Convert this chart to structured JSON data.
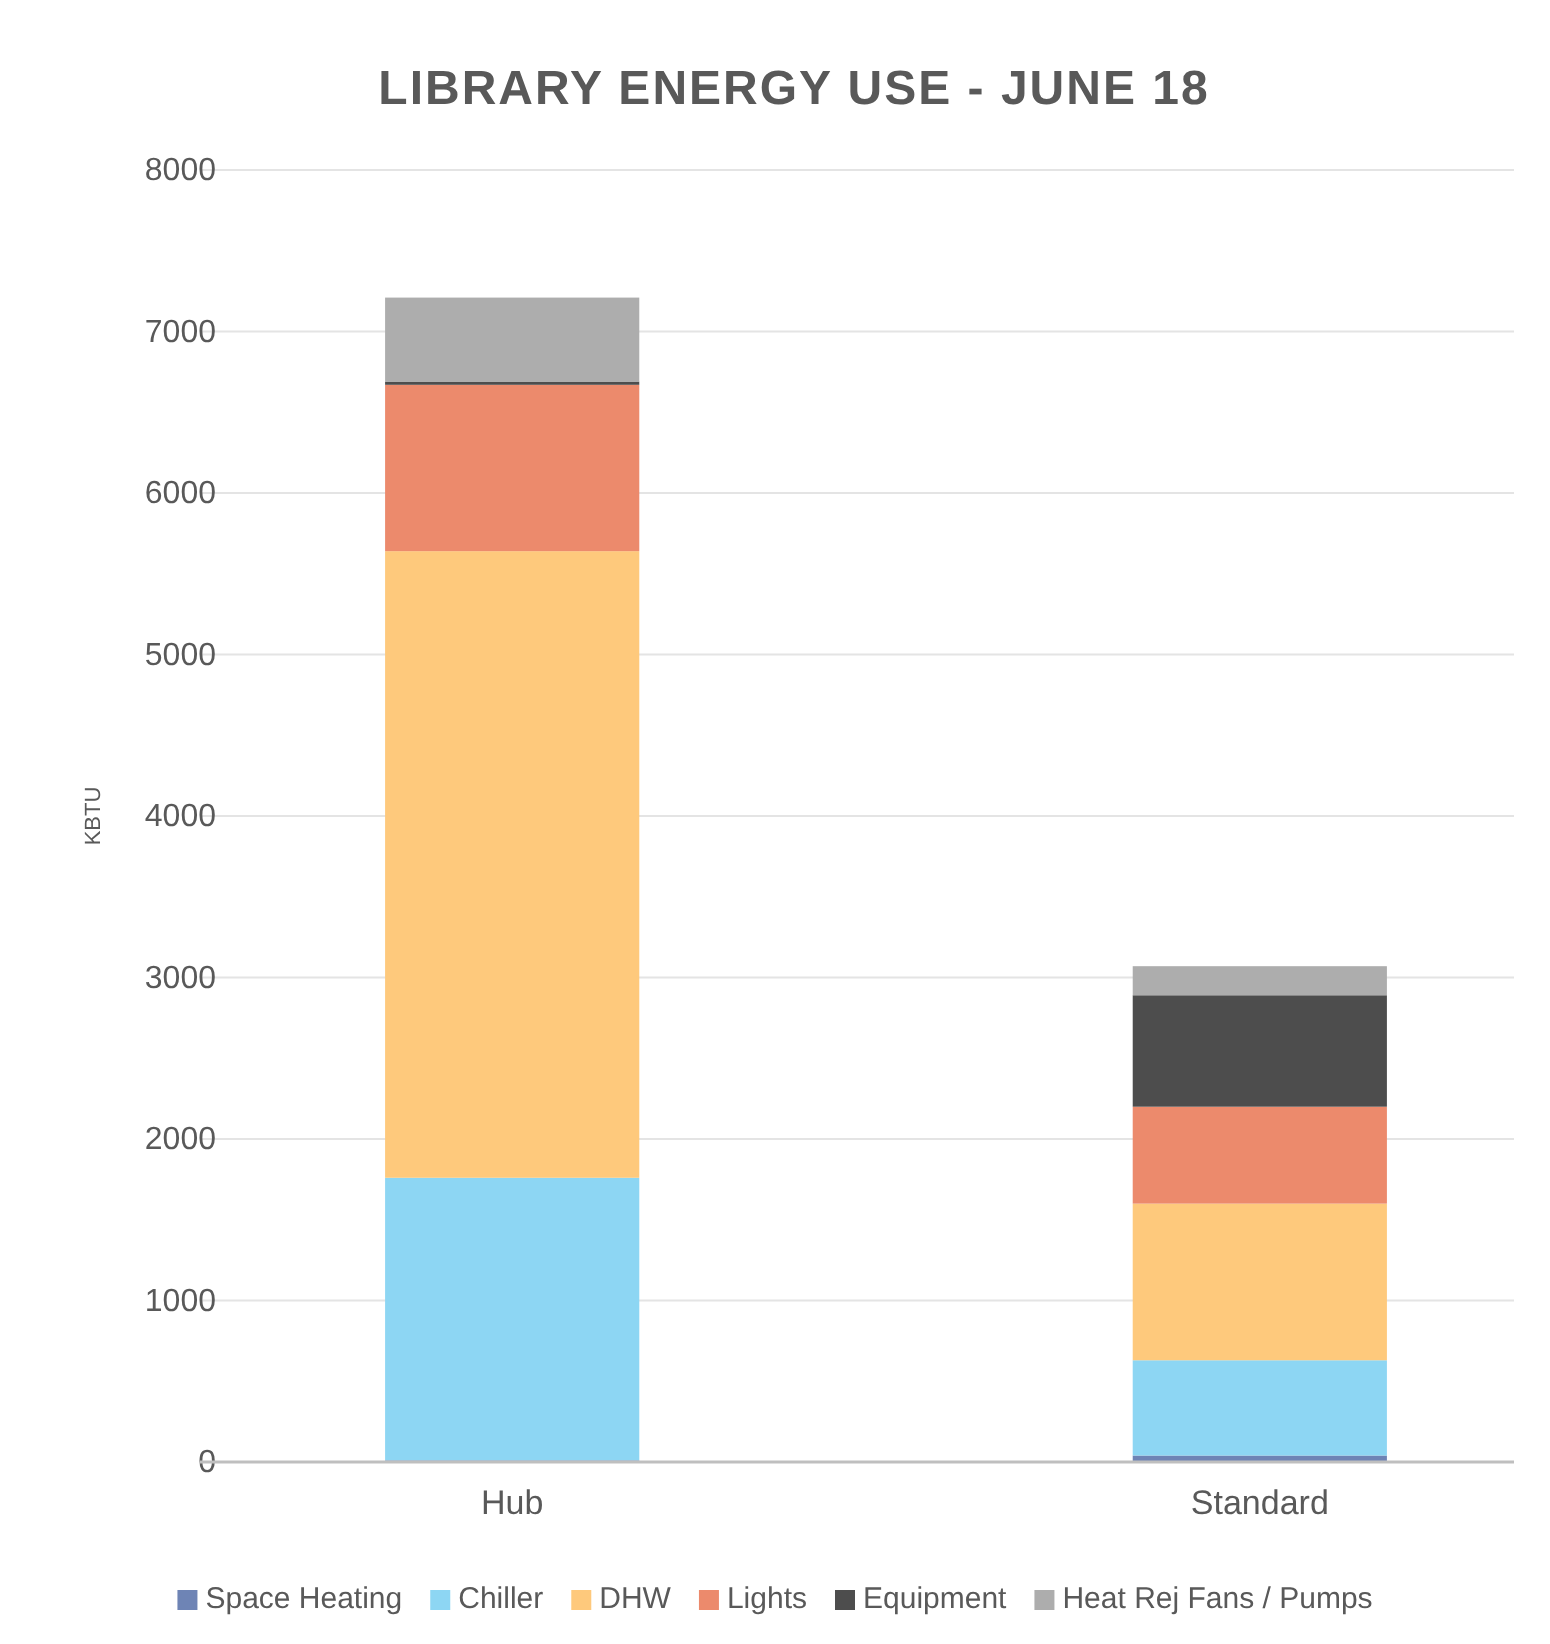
{
  "chart_data": {
    "type": "bar",
    "title": "LIBRARY ENERGY USE - JUNE 18",
    "ylabel": "KBTU",
    "categories": [
      "Hub",
      "Standard"
    ],
    "stacked": true,
    "ylim": [
      0,
      8000
    ],
    "yticks": [
      0,
      1000,
      2000,
      3000,
      4000,
      5000,
      6000,
      7000,
      8000
    ],
    "grid": "y",
    "legend": "bottom",
    "series": [
      {
        "name": "Space Heating",
        "color": "#6e84b5",
        "values": [
          10,
          40
        ]
      },
      {
        "name": "Chiller",
        "color": "#8dd6f3",
        "values": [
          1750,
          590
        ]
      },
      {
        "name": "DHW",
        "color": "#fec97c",
        "values": [
          3880,
          970
        ]
      },
      {
        "name": "Lights",
        "color": "#ec8a6c",
        "values": [
          1030,
          600
        ]
      },
      {
        "name": "Equipment",
        "color": "#4d4d4d",
        "values": [
          20,
          690
        ]
      },
      {
        "name": "Heat Rej Fans / Pumps",
        "color": "#adadad",
        "values": [
          520,
          180
        ]
      }
    ]
  }
}
